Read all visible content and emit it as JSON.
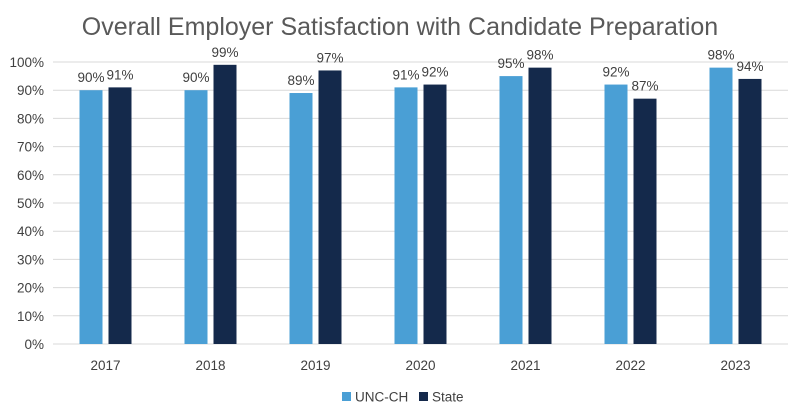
{
  "chart_data": {
    "type": "bar",
    "title": "Overall Employer Satisfaction with Candidate Preparation",
    "xlabel": "",
    "ylabel": "",
    "categories": [
      "2017",
      "2018",
      "2019",
      "2020",
      "2021",
      "2022",
      "2023"
    ],
    "series": [
      {
        "name": "UNC-CH",
        "color": "#4a9fd5",
        "values": [
          90,
          90,
          89,
          91,
          95,
          92,
          98
        ],
        "labels": [
          "90%",
          "90%",
          "89%",
          "91%",
          "95%",
          "92%",
          "98%"
        ]
      },
      {
        "name": "State",
        "color": "#14294b",
        "values": [
          91,
          99,
          97,
          92,
          98,
          87,
          94
        ],
        "labels": [
          "91%",
          "99%",
          "97%",
          "92%",
          "98%",
          "87%",
          "94%"
        ]
      }
    ],
    "ylim": [
      0,
      100
    ],
    "yticks": [
      0,
      10,
      20,
      30,
      40,
      50,
      60,
      70,
      80,
      90,
      100
    ],
    "ytick_labels": [
      "0%",
      "10%",
      "20%",
      "30%",
      "40%",
      "50%",
      "60%",
      "70%",
      "80%",
      "90%",
      "100%"
    ],
    "grid": true,
    "legend_position": "bottom"
  }
}
